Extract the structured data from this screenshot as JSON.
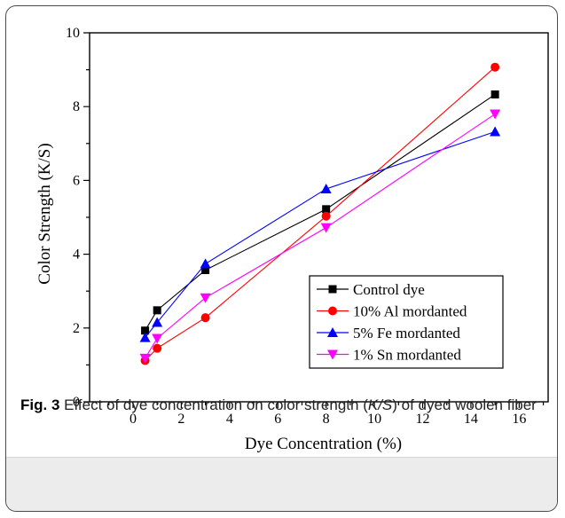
{
  "caption": {
    "label": "Fig. 3",
    "text_before": "Effect of dye concentration on color strength (",
    "text_italic": "K/S",
    "text_after": ") of dyed woolen fiber"
  },
  "chart_data": {
    "type": "line",
    "title": "",
    "xlabel": "Dye Concentration (%)",
    "ylabel": "Color Strength (K/S)",
    "xlim": [
      -1.8,
      17.2
    ],
    "ylim": [
      0,
      10
    ],
    "xticks": [
      0,
      2,
      4,
      6,
      8,
      10,
      12,
      14,
      16
    ],
    "yticks": [
      0,
      2,
      4,
      6,
      8,
      10
    ],
    "legend_position": "lower-right",
    "grid": false,
    "series": [
      {
        "name": "Control dye",
        "color": "#000000",
        "marker": "square",
        "x": [
          0.5,
          1,
          3,
          8,
          15
        ],
        "y": [
          1.93,
          2.48,
          3.57,
          5.22,
          8.33
        ]
      },
      {
        "name": "10% Al mordanted",
        "color": "#ff0000",
        "marker": "circle",
        "x": [
          0.5,
          1,
          3,
          8,
          15
        ],
        "y": [
          1.12,
          1.45,
          2.28,
          5.03,
          9.07
        ]
      },
      {
        "name": "5% Fe mordanted",
        "color": "#0000ff",
        "marker": "triangle-up",
        "x": [
          0.5,
          1,
          3,
          8,
          15
        ],
        "y": [
          1.74,
          2.15,
          3.74,
          5.77,
          7.32
        ]
      },
      {
        "name": "1% Sn mordanted",
        "color": "#ff00ff",
        "marker": "triangle-down",
        "x": [
          0.5,
          1,
          3,
          8,
          15
        ],
        "y": [
          1.18,
          1.72,
          2.82,
          4.72,
          7.8
        ]
      }
    ]
  }
}
